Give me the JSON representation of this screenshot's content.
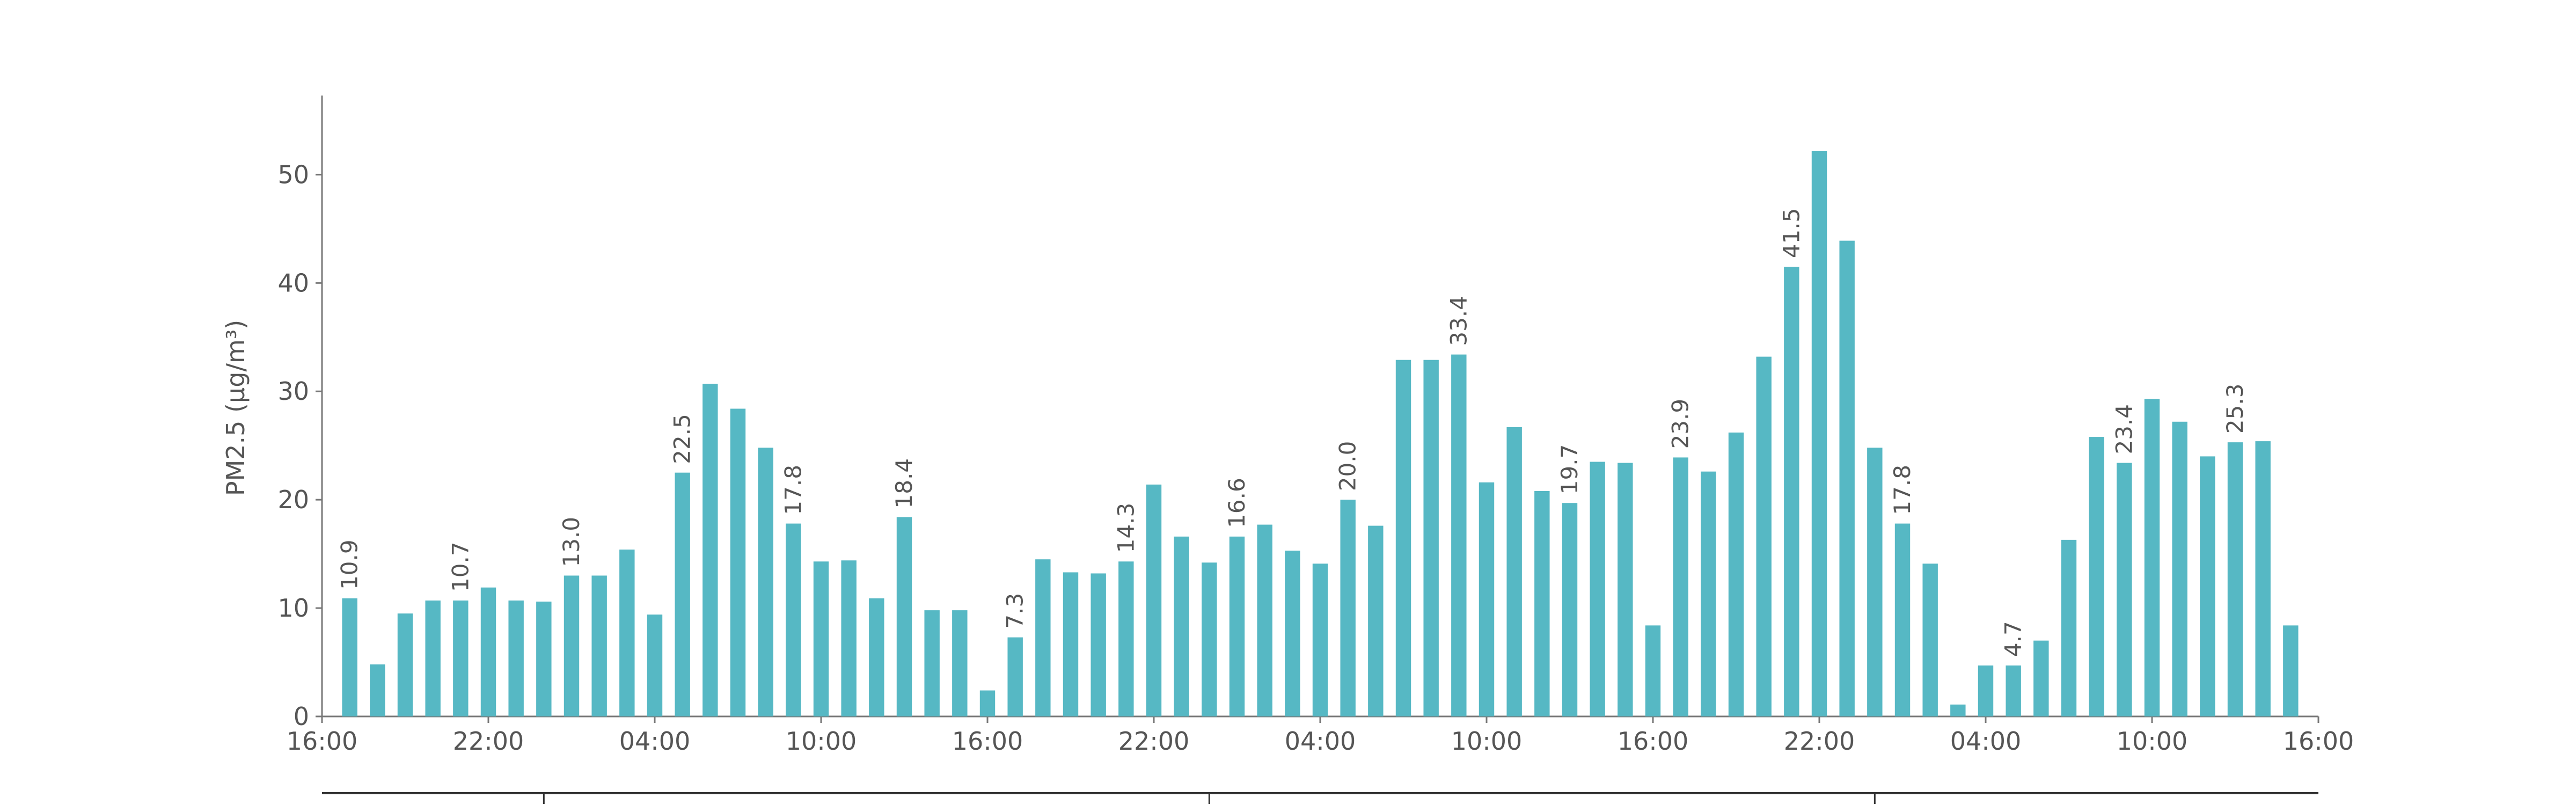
{
  "chart_data": {
    "type": "bar",
    "y_label": "PM2.5 (μg/m³)",
    "color": "#56b8c4",
    "x": [
      1,
      2,
      3,
      4,
      5,
      6,
      7,
      8,
      9,
      10,
      11,
      12,
      13,
      14,
      15,
      16,
      17,
      18,
      19,
      20,
      21,
      22,
      23,
      24,
      25,
      26,
      27,
      28,
      29,
      30,
      31,
      32,
      33,
      34,
      35,
      36,
      37,
      38,
      39,
      40,
      41,
      42,
      43,
      44,
      45,
      46,
      47,
      48,
      49,
      50,
      51,
      52,
      53,
      54,
      55,
      56,
      57,
      58,
      59,
      60,
      61,
      62,
      63,
      64,
      65,
      66,
      67,
      68,
      69,
      70,
      71
    ],
    "values": [
      10.9,
      4.8,
      9.5,
      10.7,
      10.7,
      11.9,
      10.7,
      10.6,
      13.0,
      13.0,
      15.4,
      9.4,
      22.5,
      30.7,
      28.4,
      24.8,
      17.8,
      14.3,
      14.4,
      10.9,
      18.4,
      9.8,
      9.8,
      2.4,
      7.3,
      14.5,
      13.3,
      13.2,
      14.3,
      21.4,
      16.6,
      14.2,
      16.6,
      17.7,
      15.3,
      14.1,
      20.0,
      17.6,
      32.9,
      32.9,
      33.4,
      21.6,
      26.7,
      20.8,
      19.7,
      23.5,
      23.4,
      8.4,
      23.9,
      22.6,
      26.2,
      33.2,
      41.5,
      52.2,
      43.9,
      24.8,
      17.8,
      14.1,
      1.1,
      4.7,
      4.7,
      7.0,
      16.3,
      25.8,
      23.4,
      29.3,
      27.2,
      24.0,
      25.3,
      25.4,
      8.4
    ],
    "value_labels": [
      "10.9",
      null,
      null,
      null,
      "10.7",
      null,
      null,
      null,
      "13.0",
      null,
      null,
      null,
      "22.5",
      null,
      null,
      null,
      "17.8",
      null,
      null,
      null,
      "18.4",
      null,
      null,
      null,
      "7.3",
      null,
      null,
      null,
      "14.3",
      null,
      null,
      null,
      "16.6",
      null,
      null,
      null,
      "20.0",
      null,
      null,
      null,
      "33.4",
      null,
      null,
      null,
      "19.7",
      null,
      null,
      null,
      "23.9",
      null,
      null,
      null,
      "41.5",
      null,
      null,
      null,
      "17.8",
      null,
      null,
      null,
      "4.7",
      null,
      null,
      null,
      "23.4",
      null,
      null,
      null,
      "25.3",
      null,
      null
    ],
    "xlim": [
      0,
      72
    ],
    "xticks": [
      {
        "value": 0,
        "label": "16:00"
      },
      {
        "value": 6,
        "label": "22:00"
      },
      {
        "value": 12,
        "label": "04:00"
      },
      {
        "value": 18,
        "label": "10:00"
      },
      {
        "value": 24,
        "label": "16:00"
      },
      {
        "value": 30,
        "label": "22:00"
      },
      {
        "value": 36,
        "label": "04:00"
      },
      {
        "value": 42,
        "label": "10:00"
      },
      {
        "value": 48,
        "label": "16:00"
      },
      {
        "value": 54,
        "label": "22:00"
      },
      {
        "value": 60,
        "label": "04:00"
      },
      {
        "value": 66,
        "label": "10:00"
      },
      {
        "value": 72,
        "label": "16:00"
      }
    ],
    "x2ticks": [
      8,
      32,
      56
    ],
    "ylim": [
      0,
      57.3
    ],
    "yticks": [
      0,
      10,
      20,
      30,
      40,
      50
    ]
  }
}
